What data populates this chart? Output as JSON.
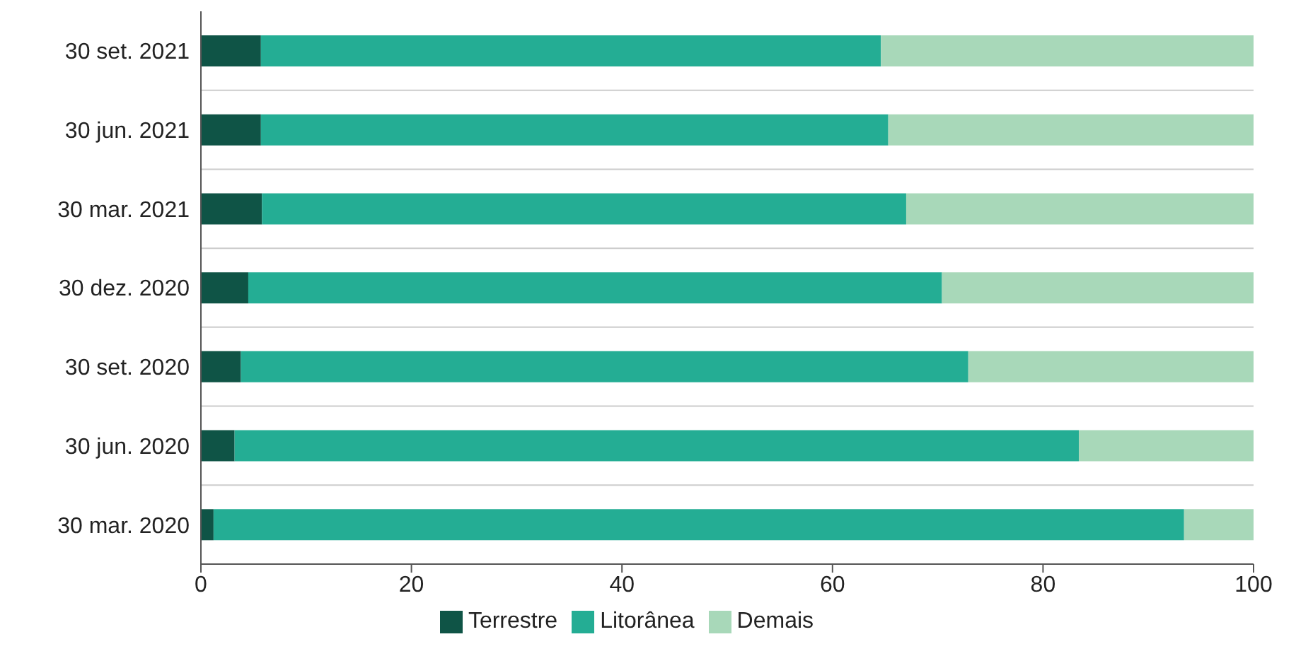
{
  "chart_data": {
    "type": "bar",
    "orientation": "horizontal",
    "stacked": true,
    "categories": [
      "30 set. 2021",
      "30 jun. 2021",
      "30 mar. 2021",
      "30 dez. 2020",
      "30 set. 2020",
      "30 jun. 2020",
      "30 mar. 2020"
    ],
    "series": [
      {
        "name": "Terrestre",
        "color": "#0f5446",
        "values": [
          5.7,
          5.7,
          5.8,
          4.5,
          3.8,
          3.2,
          1.2
        ]
      },
      {
        "name": "Litorânea",
        "color": "#24ad94",
        "values": [
          58.9,
          59.6,
          61.2,
          65.9,
          69.1,
          80.2,
          92.2
        ]
      },
      {
        "name": "Demais",
        "color": "#a8d8b9",
        "values": [
          35.4,
          34.7,
          33.0,
          29.6,
          27.1,
          16.6,
          6.6
        ]
      }
    ],
    "xlim": [
      0,
      100
    ],
    "xticks": [
      0,
      20,
      40,
      60,
      80,
      100
    ],
    "grid": "y",
    "legend": "bottom"
  }
}
